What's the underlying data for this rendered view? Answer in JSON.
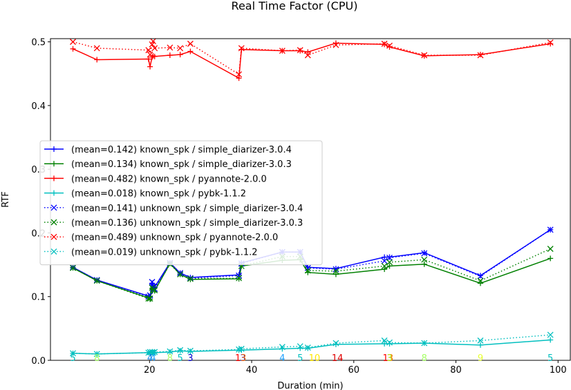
{
  "chart_data": {
    "type": "line",
    "title": "Real Time Factor (CPU)",
    "xlabel": "Duration (min)",
    "ylabel": "RTF",
    "xlim": [
      0.6,
      102.4
    ],
    "ylim": [
      0.0,
      0.505
    ],
    "xticks": [
      20,
      40,
      60,
      80,
      100
    ],
    "yticks": [
      0.0,
      0.1,
      0.2,
      0.3,
      0.4,
      0.5
    ],
    "yticklabels": [
      "0.0",
      "0.1",
      "0.2",
      "0.3",
      "0.4",
      "0.5"
    ],
    "legend_position": "center-left",
    "grid": false,
    "series": [
      {
        "name": "(mean=0.142) known_spk / simple_diarizer-3.0.4",
        "color": "#0000ff",
        "style": "solid",
        "marker": "plus",
        "x": [
          5.0,
          9.7,
          19.8,
          20.1,
          20.5,
          20.7,
          21.0,
          24.0,
          26.0,
          28.0,
          37.5,
          38.0,
          46.0,
          49.5,
          51.0,
          56.5,
          66.0,
          67.0,
          73.8,
          84.8,
          98.5
        ],
        "y": [
          0.146,
          0.126,
          0.101,
          0.1,
          0.121,
          0.118,
          0.115,
          0.153,
          0.137,
          0.13,
          0.134,
          0.153,
          0.17,
          0.17,
          0.146,
          0.144,
          0.162,
          0.162,
          0.169,
          0.133,
          0.205
        ]
      },
      {
        "name": "(mean=0.134) known_spk / simple_diarizer-3.0.3",
        "color": "#008000",
        "style": "solid",
        "marker": "plus",
        "x": [
          5.0,
          9.7,
          19.8,
          20.1,
          20.5,
          20.7,
          21.0,
          24.0,
          26.0,
          28.0,
          37.5,
          38.0,
          46.0,
          49.5,
          51.0,
          56.5,
          66.0,
          67.0,
          73.8,
          84.8,
          98.5
        ],
        "y": [
          0.145,
          0.125,
          0.098,
          0.096,
          0.113,
          0.111,
          0.109,
          0.152,
          0.135,
          0.127,
          0.128,
          0.148,
          0.157,
          0.158,
          0.138,
          0.135,
          0.143,
          0.148,
          0.151,
          0.121,
          0.16
        ]
      },
      {
        "name": "(mean=0.482) known_spk / pyannote-2.0.0",
        "color": "#ff0000",
        "style": "solid",
        "marker": "plus",
        "x": [
          5.0,
          9.7,
          19.8,
          20.1,
          20.5,
          20.7,
          21.0,
          24.0,
          26.0,
          28.0,
          37.5,
          38.0,
          46.0,
          49.5,
          51.0,
          56.5,
          66.0,
          67.0,
          73.8,
          84.8,
          98.5
        ],
        "y": [
          0.489,
          0.472,
          0.473,
          0.461,
          0.476,
          0.478,
          0.477,
          0.479,
          0.48,
          0.485,
          0.443,
          0.488,
          0.486,
          0.486,
          0.484,
          0.498,
          0.496,
          0.492,
          0.478,
          0.48,
          0.497
        ]
      },
      {
        "name": "(mean=0.018) known_spk / pybk-1.1.2",
        "color": "#00bfbf",
        "style": "solid",
        "marker": "plus",
        "x": [
          5.0,
          9.7,
          19.8,
          20.1,
          20.5,
          20.7,
          21.0,
          24.0,
          26.0,
          28.0,
          37.5,
          38.0,
          46.0,
          49.5,
          51.0,
          56.5,
          66.0,
          67.0,
          73.8,
          84.8,
          98.5
        ],
        "y": [
          0.011,
          0.01,
          0.012,
          0.011,
          0.012,
          0.011,
          0.012,
          0.013,
          0.015,
          0.014,
          0.016,
          0.016,
          0.018,
          0.019,
          0.019,
          0.025,
          0.026,
          0.026,
          0.027,
          0.024,
          0.032
        ]
      },
      {
        "name": "(mean=0.141) unknown_spk / simple_diarizer-3.0.4",
        "color": "#0000ff",
        "style": "dotted",
        "marker": "x",
        "x": [
          5.0,
          9.7,
          19.8,
          20.1,
          20.5,
          20.7,
          21.0,
          24.0,
          26.0,
          28.0,
          37.5,
          38.0,
          46.0,
          49.5,
          51.0,
          56.5,
          66.0,
          67.0,
          73.8,
          84.8,
          98.5
        ],
        "y": [
          0.146,
          0.126,
          0.1,
          0.102,
          0.123,
          0.116,
          0.112,
          0.153,
          0.137,
          0.129,
          0.133,
          0.152,
          0.17,
          0.17,
          0.145,
          0.143,
          0.156,
          0.161,
          0.168,
          0.132,
          0.205
        ]
      },
      {
        "name": "(mean=0.136) unknown_spk / simple_diarizer-3.0.3",
        "color": "#008000",
        "style": "dotted",
        "marker": "x",
        "x": [
          5.0,
          9.7,
          19.8,
          20.1,
          20.5,
          20.7,
          21.0,
          24.0,
          26.0,
          28.0,
          37.5,
          38.0,
          46.0,
          49.5,
          51.0,
          56.5,
          66.0,
          67.0,
          73.8,
          84.8,
          98.5
        ],
        "y": [
          0.145,
          0.125,
          0.097,
          0.097,
          0.114,
          0.111,
          0.11,
          0.151,
          0.135,
          0.128,
          0.129,
          0.148,
          0.163,
          0.163,
          0.141,
          0.14,
          0.148,
          0.154,
          0.158,
          0.125,
          0.175
        ]
      },
      {
        "name": "(mean=0.489) unknown_spk / pyannote-2.0.0",
        "color": "#ff0000",
        "style": "dotted",
        "marker": "x",
        "x": [
          5.0,
          9.7,
          19.8,
          20.1,
          20.5,
          20.7,
          21.0,
          24.0,
          26.0,
          28.0,
          37.5,
          38.0,
          46.0,
          49.5,
          51.0,
          56.5,
          66.0,
          67.0,
          73.8,
          84.8,
          98.5
        ],
        "y": [
          0.5,
          0.49,
          0.487,
          0.48,
          0.496,
          0.501,
          0.49,
          0.491,
          0.49,
          0.497,
          0.449,
          0.49,
          0.486,
          0.487,
          0.479,
          0.495,
          0.497,
          0.494,
          0.479,
          0.479,
          0.499
        ]
      },
      {
        "name": "(mean=0.019) unknown_spk / pybk-1.1.2",
        "color": "#00bfbf",
        "style": "dotted",
        "marker": "x",
        "x": [
          5.0,
          9.7,
          19.8,
          20.1,
          20.5,
          20.7,
          21.0,
          24.0,
          26.0,
          28.0,
          37.5,
          38.0,
          46.0,
          49.5,
          51.0,
          56.5,
          66.0,
          67.0,
          73.8,
          84.8,
          98.5
        ],
        "y": [
          0.011,
          0.01,
          0.012,
          0.013,
          0.013,
          0.012,
          0.013,
          0.014,
          0.016,
          0.015,
          0.017,
          0.018,
          0.021,
          0.022,
          0.02,
          0.027,
          0.031,
          0.028,
          0.027,
          0.031,
          0.04
        ]
      }
    ],
    "annotations": [
      {
        "text": "5",
        "x": 5.0,
        "color": "#00bfbf"
      },
      {
        "text": "8",
        "x": 9.7,
        "color": "#a6ff66"
      },
      {
        "text": "4",
        "x": 20.1,
        "color": "#0a7de6"
      },
      {
        "text": "4",
        "x": 20.7,
        "color": "#1fa0ff"
      },
      {
        "text": "8",
        "x": 24.0,
        "color": "#a6ff66"
      },
      {
        "text": "5",
        "x": 26.0,
        "color": "#00bfbf"
      },
      {
        "text": "3",
        "x": 28.0,
        "color": "#0000cd"
      },
      {
        "text": "1",
        "x": 37.3,
        "color": "#ff0000"
      },
      {
        "text": "3",
        "x": 38.3,
        "color": "#0000cd"
      },
      {
        "text": "3",
        "x": 38.4,
        "color": "#ff6a00"
      },
      {
        "text": "4",
        "x": 46.0,
        "color": "#1fa0ff"
      },
      {
        "text": "5",
        "x": 49.5,
        "color": "#00bfbf"
      },
      {
        "text": "10",
        "x": 52.3,
        "color": "#ffe800"
      },
      {
        "text": "14",
        "x": 56.8,
        "color": "#e00000"
      },
      {
        "text": "1",
        "x": 66.2,
        "color": "#ff0000"
      },
      {
        "text": "3",
        "x": 67.2,
        "color": "#ff6a00"
      },
      {
        "text": "3",
        "x": 67.0,
        "color": "#b5e61d"
      },
      {
        "text": "8",
        "x": 73.8,
        "color": "#a6ff66"
      },
      {
        "text": "9",
        "x": 84.8,
        "color": "#e6ff33"
      },
      {
        "text": "5",
        "x": 98.5,
        "color": "#00bfbf"
      }
    ]
  }
}
